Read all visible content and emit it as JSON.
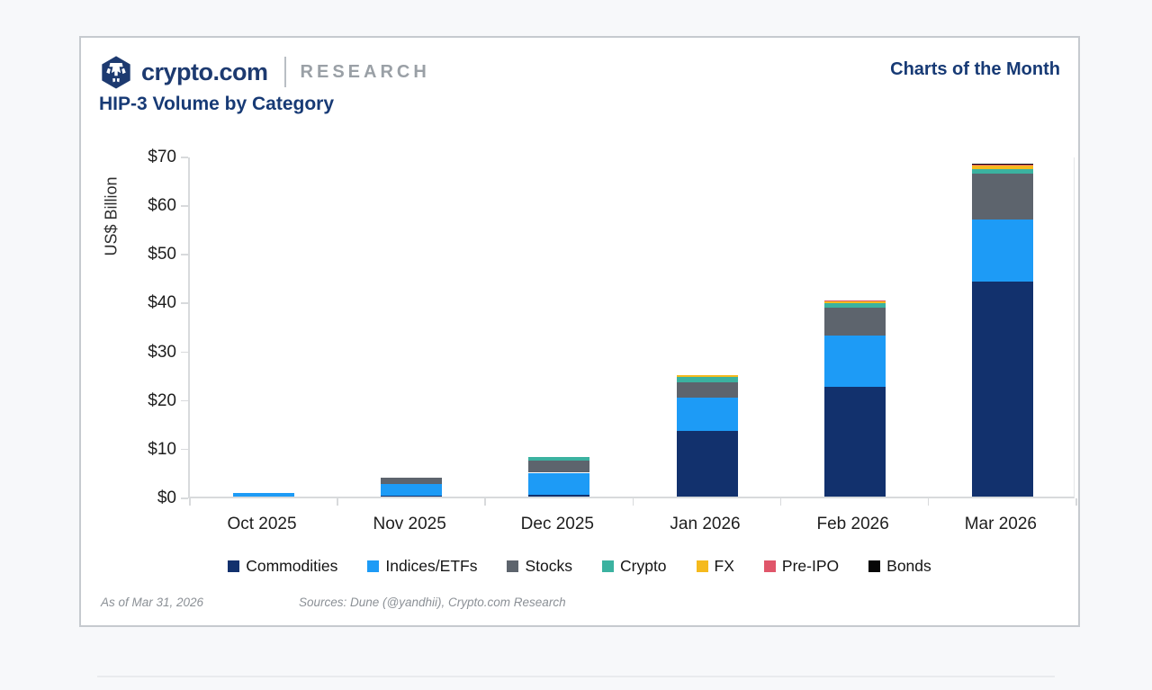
{
  "page": {
    "header": {
      "brand": "crypto.com",
      "brand_suffix": "RESEARCH",
      "right_label": "Charts of the Month",
      "logo_icon": "crypto-com-hexagon-logo"
    },
    "title": "HIP-3 Volume by Category",
    "footer": {
      "as_of": "As of Mar 31, 2026",
      "sources": "Sources: Dune (@yandhii), Crypto.com Research"
    }
  },
  "colors": {
    "navy_text": "#173a75",
    "research_gray": "#9aa0a6",
    "axis_line": "#d8dadc",
    "footer_gray": "#8b9096",
    "card_border": "#c6cacf",
    "page_bg": "#f7f8fa"
  },
  "chart_data": {
    "type": "bar",
    "subtype": "stacked",
    "title": "HIP-3 Volume by Category",
    "xlabel": "",
    "ylabel": "US$ Billion",
    "ylim": [
      0,
      70
    ],
    "ytick_step": 10,
    "ytick_labels": [
      "$0",
      "$10",
      "$20",
      "$30",
      "$40",
      "$50",
      "$60",
      "$70"
    ],
    "grid": false,
    "legend_position": "bottom",
    "categories": [
      "Oct 2025",
      "Nov 2025",
      "Dec 2025",
      "Jan 2026",
      "Feb 2026",
      "Mar 2026"
    ],
    "series": [
      {
        "name": "Commodities",
        "color": "#12316d",
        "values": [
          0,
          0.1,
          0.3,
          13.5,
          22.6,
          44.2
        ]
      },
      {
        "name": "Indices/ETFs",
        "color": "#1d9bf6",
        "values": [
          0.7,
          2.4,
          4.6,
          6.8,
          10.5,
          12.6
        ]
      },
      {
        "name": "Stocks",
        "color": "#5d646d",
        "values": [
          0,
          1.3,
          2.5,
          3.2,
          5.7,
          9.6
        ]
      },
      {
        "name": "Crypto",
        "color": "#3bb2a0",
        "values": [
          0,
          0,
          0.7,
          1.1,
          1.0,
          0.9
        ]
      },
      {
        "name": "FX",
        "color": "#f5ba1d",
        "values": [
          0,
          0,
          0,
          0.4,
          0.4,
          0.6
        ]
      },
      {
        "name": "Pre-IPO",
        "color": "#e0566a",
        "values": [
          0,
          0,
          0,
          0,
          0.1,
          0.25
        ]
      },
      {
        "name": "Bonds",
        "color": "#070707",
        "values": [
          0,
          0,
          0,
          0,
          0,
          0.15
        ]
      }
    ],
    "totals": [
      0.7,
      3.8,
      8.1,
      25.0,
      40.3,
      68.3
    ]
  }
}
